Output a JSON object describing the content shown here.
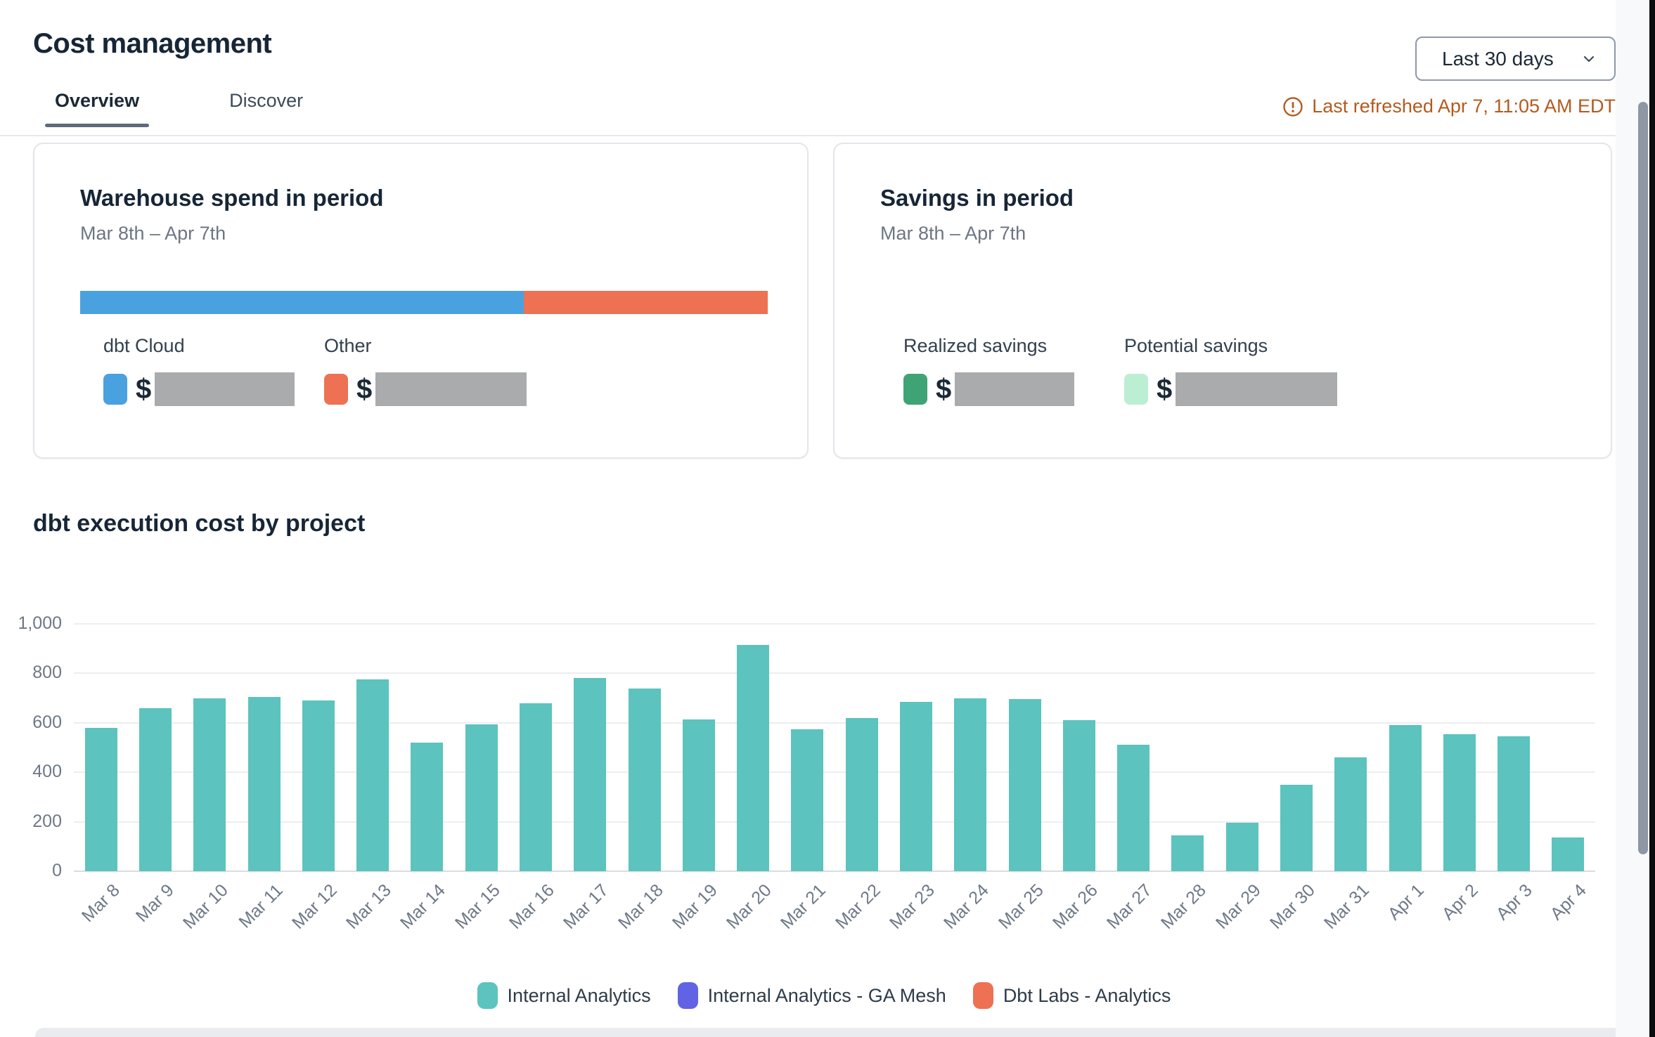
{
  "header": {
    "title": "Cost management",
    "tabs": [
      {
        "label": "Overview",
        "active": true
      },
      {
        "label": "Discover",
        "active": false
      }
    ],
    "date_range_selector": {
      "value": "Last 30 days"
    },
    "last_refreshed": "Last refreshed Apr 7, 11:05 AM EDT",
    "last_refreshed_color": "#b45a1e"
  },
  "cards": {
    "warehouse_spend": {
      "title": "Warehouse spend in period",
      "subtitle": "Mar 8th – Apr 7th",
      "bar_segments": [
        {
          "name": "dbt Cloud",
          "color": "#4aa1e0",
          "pct": 64.5
        },
        {
          "name": "Other",
          "color": "#ed7152",
          "pct": 35.5
        }
      ],
      "items": [
        {
          "label": "dbt Cloud",
          "color": "#4aa1e0",
          "currency": "$",
          "value_redacted": true
        },
        {
          "label": "Other",
          "color": "#ed7152",
          "currency": "$",
          "value_redacted": true
        }
      ]
    },
    "savings": {
      "title": "Savings in period",
      "subtitle": "Mar 8th – Apr 7th",
      "items": [
        {
          "label": "Realized savings",
          "color": "#3ea475",
          "currency": "$",
          "value_redacted": true
        },
        {
          "label": "Potential savings",
          "color": "#bceed3",
          "currency": "$",
          "value_redacted": true
        }
      ]
    }
  },
  "section": {
    "title": "dbt execution cost by project"
  },
  "chart_data": {
    "type": "bar",
    "title": "dbt execution cost by project",
    "categories": [
      "Mar 8",
      "Mar 9",
      "Mar 10",
      "Mar 11",
      "Mar 12",
      "Mar 13",
      "Mar 14",
      "Mar 15",
      "Mar 16",
      "Mar 17",
      "Mar 18",
      "Mar 19",
      "Mar 20",
      "Mar 21",
      "Mar 22",
      "Mar 23",
      "Mar 24",
      "Mar 25",
      "Mar 26",
      "Mar 27",
      "Mar 28",
      "Mar 29",
      "Mar 30",
      "Mar 31",
      "Apr 1",
      "Apr 2",
      "Apr 3",
      "Apr 4"
    ],
    "series": [
      {
        "name": "Internal Analytics",
        "color": "#5cc3be",
        "values": [
          580,
          660,
          700,
          705,
          690,
          775,
          520,
          595,
          680,
          780,
          740,
          615,
          915,
          575,
          620,
          685,
          700,
          695,
          610,
          510,
          145,
          195,
          350,
          460,
          590,
          555,
          545,
          135
        ]
      },
      {
        "name": "Internal Analytics - GA Mesh",
        "color": "#6163e4"
      },
      {
        "name": "Dbt Labs - Analytics",
        "color": "#ed7152"
      }
    ],
    "xlabel": "",
    "ylabel": "",
    "ylim": [
      0,
      1000
    ],
    "yticks": [
      0,
      200,
      400,
      600,
      800,
      1000
    ],
    "grid": true,
    "legend_position": "bottom"
  }
}
